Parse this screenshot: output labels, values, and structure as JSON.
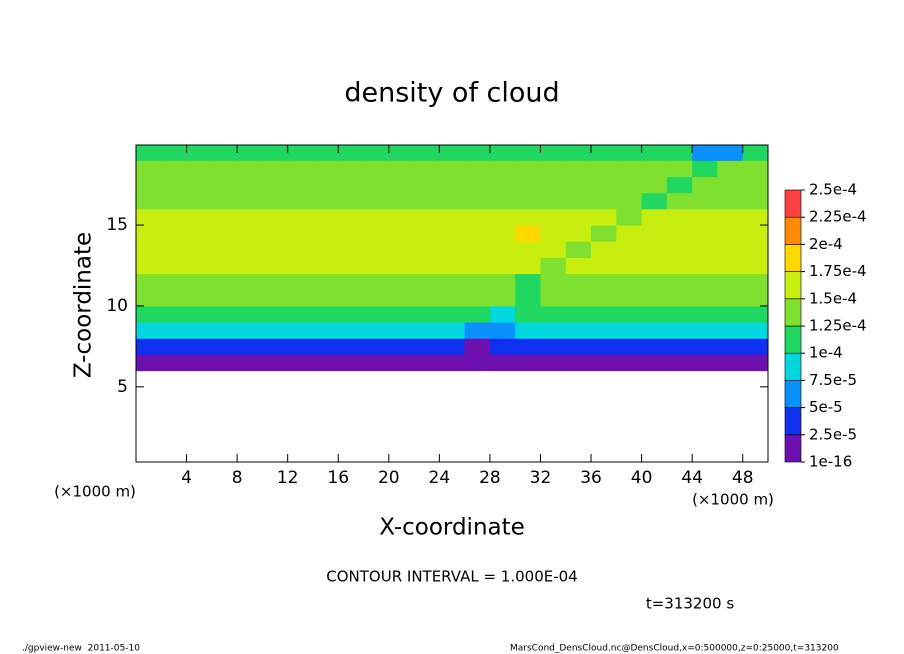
{
  "chart_data": {
    "type": "heatmap",
    "title": "density of cloud",
    "x_label": "X-coordinate",
    "y_label": "Z-coordinate",
    "x_unit": "(×1000 m)",
    "y_unit": "(×1000 m)",
    "xlim": [
      0,
      50
    ],
    "ylim": [
      0.35,
      19.95
    ],
    "xticks": [
      4,
      8,
      12,
      16,
      20,
      24,
      28,
      32,
      36,
      40,
      44,
      48
    ],
    "yticks": [
      5,
      10,
      15
    ],
    "x": [
      1,
      3,
      5,
      7,
      9,
      11,
      13,
      15,
      17,
      19,
      21,
      23,
      25,
      27,
      29,
      31,
      33,
      35,
      37,
      39,
      41,
      43,
      45,
      47,
      49
    ],
    "y": [
      6.5,
      7.5,
      8.5,
      9.5,
      10.5,
      11.5,
      12.5,
      13.5,
      14.5,
      15.5,
      16.5,
      17.5,
      18.5,
      19.5
    ],
    "z": [
      [
        1e-05,
        1e-05,
        1e-05,
        1e-05,
        1e-05,
        1e-05,
        1e-05,
        1e-05,
        1e-05,
        1e-05,
        1e-05,
        1e-05,
        1e-05,
        1e-05,
        1e-05,
        1e-05,
        1e-05,
        1e-05,
        1e-05,
        1e-05,
        1e-05,
        1e-05,
        1e-05,
        1e-05,
        1e-05
      ],
      [
        4e-05,
        4e-05,
        4e-05,
        4e-05,
        4e-05,
        4e-05,
        4e-05,
        4e-05,
        4e-05,
        4e-05,
        4e-05,
        4e-05,
        4e-05,
        2e-05,
        4e-05,
        4e-05,
        4e-05,
        4e-05,
        4e-05,
        4e-05,
        4e-05,
        4e-05,
        4e-05,
        4e-05,
        4e-05
      ],
      [
        8.5e-05,
        8.5e-05,
        8.5e-05,
        8.5e-05,
        8.5e-05,
        8.5e-05,
        8.5e-05,
        8.5e-05,
        8.5e-05,
        8.5e-05,
        8.5e-05,
        8.5e-05,
        8.5e-05,
        6e-05,
        6e-05,
        8.5e-05,
        8.5e-05,
        8.5e-05,
        8.5e-05,
        8.5e-05,
        8.5e-05,
        8.5e-05,
        8.5e-05,
        8.5e-05,
        8.5e-05
      ],
      [
        0.00012,
        0.00012,
        0.00012,
        0.00012,
        0.00012,
        0.00012,
        0.00012,
        0.00012,
        0.00012,
        0.00012,
        0.00012,
        0.00012,
        0.00012,
        0.00012,
        9e-05,
        0.00012,
        0.00012,
        0.00012,
        0.00012,
        0.00012,
        0.00012,
        0.00012,
        0.00012,
        0.00012,
        0.00012
      ],
      [
        0.000135,
        0.000135,
        0.000135,
        0.000135,
        0.000135,
        0.000135,
        0.000135,
        0.000135,
        0.000135,
        0.000135,
        0.000135,
        0.000135,
        0.000135,
        0.000135,
        0.000135,
        0.00011,
        0.000135,
        0.000135,
        0.000135,
        0.000135,
        0.000135,
        0.000135,
        0.000135,
        0.000135,
        0.000135
      ],
      [
        0.000145,
        0.000145,
        0.000145,
        0.000145,
        0.000145,
        0.000145,
        0.000145,
        0.000145,
        0.000145,
        0.000145,
        0.000145,
        0.000145,
        0.000145,
        0.000145,
        0.000145,
        0.000115,
        0.000145,
        0.000145,
        0.000145,
        0.000145,
        0.000145,
        0.000145,
        0.000145,
        0.000145,
        0.000145
      ],
      [
        0.00015,
        0.00015,
        0.00015,
        0.00015,
        0.00015,
        0.00015,
        0.00015,
        0.00015,
        0.00015,
        0.00015,
        0.00015,
        0.00015,
        0.00015,
        0.00015,
        0.00015,
        0.000155,
        0.00013,
        0.00015,
        0.00015,
        0.00015,
        0.00015,
        0.00015,
        0.00015,
        0.00015,
        0.00015
      ],
      [
        0.000155,
        0.000155,
        0.000155,
        0.000155,
        0.000155,
        0.000155,
        0.000155,
        0.000155,
        0.000155,
        0.000155,
        0.000155,
        0.000155,
        0.000155,
        0.000155,
        0.00016,
        0.00016,
        0.00016,
        0.000135,
        0.000155,
        0.000155,
        0.000155,
        0.000155,
        0.000155,
        0.000155,
        0.000155
      ],
      [
        0.000155,
        0.000155,
        0.000155,
        0.000155,
        0.000155,
        0.000155,
        0.000155,
        0.000155,
        0.000155,
        0.000155,
        0.000155,
        0.000155,
        0.000155,
        0.00016,
        0.00017,
        0.00018,
        0.00017,
        0.00016,
        0.000135,
        0.000155,
        0.000155,
        0.000155,
        0.000155,
        0.000155,
        0.000155
      ],
      [
        0.00015,
        0.00015,
        0.00015,
        0.00015,
        0.00015,
        0.00015,
        0.00015,
        0.00015,
        0.00015,
        0.00015,
        0.00015,
        0.00015,
        0.00015,
        0.00015,
        0.000155,
        0.00016,
        0.000155,
        0.00015,
        0.00015,
        0.00013,
        0.00015,
        0.00015,
        0.00015,
        0.00015,
        0.00015
      ],
      [
        0.000145,
        0.000145,
        0.000145,
        0.000145,
        0.000145,
        0.000145,
        0.000145,
        0.000145,
        0.000145,
        0.000145,
        0.000145,
        0.000145,
        0.000145,
        0.000145,
        0.000145,
        0.000145,
        0.000145,
        0.000145,
        0.000145,
        0.000145,
        0.00012,
        0.000145,
        0.000145,
        0.000145,
        0.000145
      ],
      [
        0.00014,
        0.00014,
        0.00014,
        0.00014,
        0.00014,
        0.00014,
        0.00014,
        0.00014,
        0.00014,
        0.00014,
        0.00014,
        0.00014,
        0.00014,
        0.00014,
        0.00014,
        0.00014,
        0.00014,
        0.00014,
        0.00014,
        0.00014,
        0.00014,
        0.000115,
        0.00014,
        0.00014,
        0.00014
      ],
      [
        0.00013,
        0.00013,
        0.00013,
        0.00013,
        0.00013,
        0.00013,
        0.00013,
        0.00013,
        0.00013,
        0.00013,
        0.00013,
        0.00013,
        0.00013,
        0.00013,
        0.00013,
        0.00013,
        0.00013,
        0.00013,
        0.00013,
        0.00013,
        0.00013,
        0.00013,
        0.00011,
        0.00013,
        0.00013
      ],
      [
        0.000115,
        0.000115,
        0.000115,
        0.000115,
        0.000115,
        0.000115,
        0.000115,
        0.000115,
        0.000115,
        0.000115,
        0.000115,
        0.000115,
        0.000115,
        0.000115,
        0.000115,
        0.000115,
        0.000115,
        0.000115,
        0.000115,
        0.000115,
        0.000115,
        0.000115,
        7e-05,
        7e-05,
        0.000115
      ]
    ],
    "colorbar_levels": [
      {
        "value": 1e-16,
        "label": "1e-16"
      },
      {
        "value": 2.5e-05,
        "label": "2.5e-5"
      },
      {
        "value": 5e-05,
        "label": "5e-5"
      },
      {
        "value": 7.5e-05,
        "label": "7.5e-5"
      },
      {
        "value": 0.0001,
        "label": "1e-4"
      },
      {
        "value": 0.000125,
        "label": "1.25e-4"
      },
      {
        "value": 0.00015,
        "label": "1.5e-4"
      },
      {
        "value": 0.000175,
        "label": "1.75e-4"
      },
      {
        "value": 0.0002,
        "label": "2e-4"
      },
      {
        "value": 0.000225,
        "label": "2.25e-4"
      },
      {
        "value": 0.00025,
        "label": "2.5e-4"
      }
    ],
    "colorbar_colors": [
      "#6e10b0",
      "#1030f0",
      "#0a90ff",
      "#00d8e0",
      "#20d860",
      "#80e030",
      "#c8ee10",
      "#ffd800",
      "#ff8c00",
      "#ff4040"
    ],
    "contour_interval_text": "CONTOUR INTERVAL = 1.000E-04",
    "time_text": "t=313200 s",
    "footer_left": "./gpview-new  2011-05-10",
    "footer_right": "MarsCond_DensCloud.nc@DensCloud,x=0:500000,z=0:25000,t=313200"
  }
}
